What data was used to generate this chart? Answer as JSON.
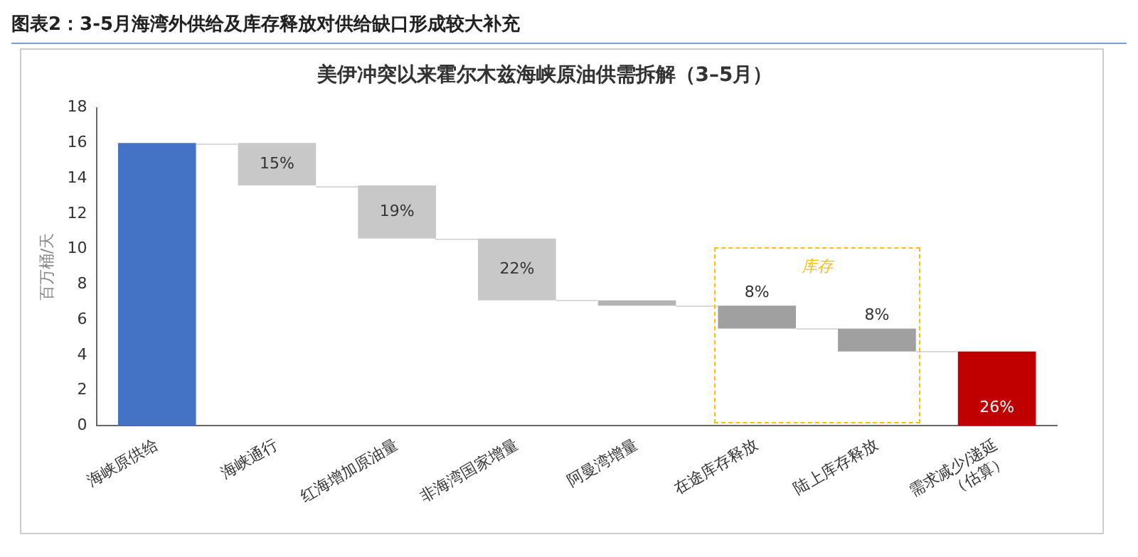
{
  "chart_data": {
    "type": "bar",
    "title": "图表2：3-5月海湾外供给及库存释放对供给缺口形成较大补充",
    "subtitle": "美伊冲突以来霍尔木兹海峡原油供需拆解（3–5月）",
    "ylabel": "百万桶/天",
    "categories": [
      "海峡原供给",
      "海峡通行",
      "红海增加原油量",
      "非海湾国家增量",
      "阿曼湾增量",
      "在途库存释放",
      "陆上库存释放",
      "需求减少/递延\n（估算）"
    ],
    "values": [
      16.0,
      -2.4,
      -3.0,
      -3.5,
      -0.3,
      -1.3,
      -1.3,
      4.2
    ],
    "base": [
      0,
      16.0,
      13.6,
      10.6,
      7.1,
      6.8,
      5.5,
      0
    ],
    "colors": [
      "#4472c4",
      "#c8c8c8",
      "#c8c8c8",
      "#c8c8c8",
      "#b4b4b4",
      "#a0a0a0",
      "#a0a0a0",
      "#c00000"
    ],
    "annotations": [
      {
        "text": "15%",
        "x": "海峡通行",
        "y": 14.8
      },
      {
        "text": "19%",
        "x": "红海增加原油量",
        "y": 12.1
      },
      {
        "text": "22%",
        "x": "非海湾国家增量",
        "y": 8.85
      },
      {
        "text": "8%",
        "x": "在途库存释放",
        "y": 6.8
      },
      {
        "text": "8%",
        "x": "陆上库存释放",
        "y": 5.5
      },
      {
        "text": "26%",
        "x": "需求减少/递延\n（估算）",
        "y": 1.0
      },
      "库存"
    ],
    "ylim": [
      0,
      18
    ],
    "yticks": [
      0,
      2,
      4,
      6,
      8,
      10,
      12,
      14,
      16,
      18
    ],
    "grid": false,
    "legend": false
  }
}
